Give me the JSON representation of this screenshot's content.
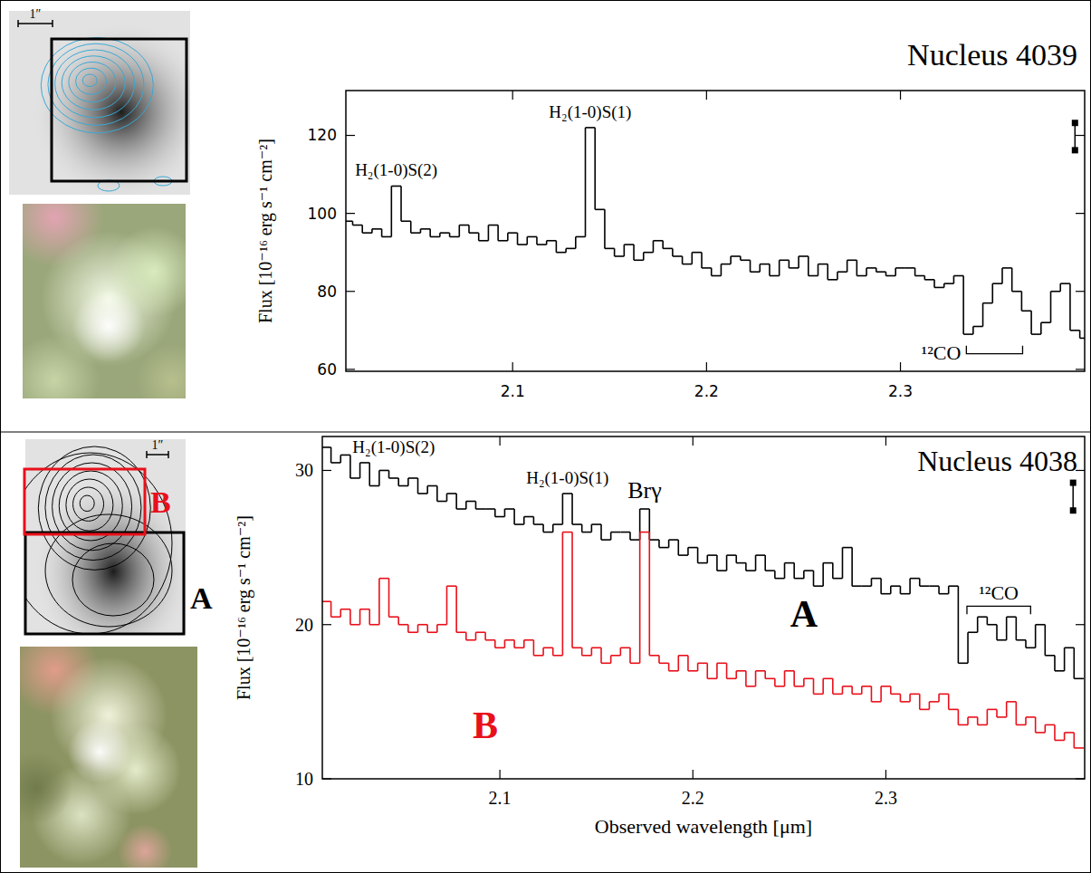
{
  "chart_data": [
    {
      "type": "line",
      "title": "Nucleus 4039",
      "ylabel": "Flux [10⁻¹⁶ erg s⁻¹ cm⁻²]",
      "scale_label": "1″",
      "line_style": "steps",
      "xlim": [
        2.014,
        2.395
      ],
      "xticks": [
        2.1,
        2.2,
        2.3
      ],
      "ylim": [
        59.5,
        131.5
      ],
      "yticks": [
        60,
        80,
        100,
        120
      ],
      "x": [
        2.015,
        2.02,
        2.025,
        2.03,
        2.035,
        2.04,
        2.045,
        2.05,
        2.055,
        2.06,
        2.065,
        2.07,
        2.075,
        2.08,
        2.085,
        2.09,
        2.095,
        2.1,
        2.105,
        2.11,
        2.115,
        2.12,
        2.125,
        2.13,
        2.135,
        2.14,
        2.145,
        2.15,
        2.155,
        2.16,
        2.165,
        2.17,
        2.175,
        2.18,
        2.185,
        2.19,
        2.195,
        2.2,
        2.205,
        2.21,
        2.215,
        2.22,
        2.225,
        2.23,
        2.235,
        2.24,
        2.245,
        2.25,
        2.255,
        2.26,
        2.265,
        2.27,
        2.275,
        2.28,
        2.285,
        2.29,
        2.295,
        2.3,
        2.305,
        2.31,
        2.315,
        2.32,
        2.325,
        2.33,
        2.335,
        2.34,
        2.345,
        2.35,
        2.355,
        2.36,
        2.365,
        2.37,
        2.375,
        2.38,
        2.385,
        2.39,
        2.395
      ],
      "series": [
        {
          "color": "#000000",
          "values": [
            98,
            97,
            95,
            96,
            94,
            107,
            98,
            95,
            96,
            94,
            95,
            94,
            97,
            95,
            93,
            97,
            93,
            95,
            92,
            94,
            92,
            93,
            90,
            91,
            94,
            122,
            101,
            91,
            89,
            92,
            88,
            90,
            93,
            91,
            89,
            87,
            90,
            86,
            84,
            87,
            89,
            88,
            85,
            87,
            84,
            88,
            86,
            89,
            84,
            87,
            83,
            85,
            88,
            84,
            86,
            85,
            84,
            86,
            86,
            84,
            83,
            81,
            82,
            84,
            69,
            71,
            77,
            82,
            86,
            80,
            75,
            69,
            72,
            80,
            82,
            70,
            68
          ]
        }
      ],
      "annotations": [
        {
          "text": "H₂(1-0)S(2)",
          "x": 2.04
        },
        {
          "text": "H₂(1-0)S(1)",
          "x": 2.14
        },
        {
          "text": "¹²CO",
          "x": [
            2.334,
            2.363
          ],
          "y": 64
        }
      ],
      "error_bar": {
        "x": 2.39,
        "y": 119.7,
        "error": 3.5
      }
    },
    {
      "type": "line",
      "title": "Nucleus 4038",
      "ylabel": "Flux [10⁻¹⁶ erg s⁻¹ cm⁻²]",
      "xlabel": "Observed wavelength [μm]",
      "scale_label": "1″",
      "line_style": "steps",
      "xlim": [
        2.008,
        2.403
      ],
      "xticks": [
        2.1,
        2.2,
        2.3
      ],
      "ylim": [
        10,
        32.2
      ],
      "yticks": [
        10,
        20,
        30
      ],
      "x": [
        2.01,
        2.015,
        2.02,
        2.025,
        2.03,
        2.035,
        2.04,
        2.045,
        2.05,
        2.055,
        2.06,
        2.065,
        2.07,
        2.075,
        2.08,
        2.085,
        2.09,
        2.095,
        2.1,
        2.105,
        2.11,
        2.115,
        2.12,
        2.125,
        2.13,
        2.135,
        2.14,
        2.145,
        2.15,
        2.155,
        2.16,
        2.165,
        2.17,
        2.175,
        2.18,
        2.185,
        2.19,
        2.195,
        2.2,
        2.205,
        2.21,
        2.215,
        2.22,
        2.225,
        2.23,
        2.235,
        2.24,
        2.245,
        2.25,
        2.255,
        2.26,
        2.265,
        2.27,
        2.275,
        2.28,
        2.285,
        2.29,
        2.295,
        2.3,
        2.305,
        2.31,
        2.315,
        2.32,
        2.325,
        2.33,
        2.335,
        2.34,
        2.345,
        2.35,
        2.355,
        2.36,
        2.365,
        2.37,
        2.375,
        2.38,
        2.385,
        2.39,
        2.395,
        2.4
      ],
      "series": [
        {
          "name": "A",
          "color": "#000000",
          "values": [
            31.5,
            30.5,
            31,
            29.5,
            30.5,
            29,
            30,
            29.5,
            29,
            29.5,
            28.5,
            29,
            28,
            28.5,
            27.5,
            28,
            27.5,
            27.5,
            27,
            27.5,
            26.5,
            27,
            26.5,
            26,
            26.5,
            28.5,
            26.5,
            26,
            26.5,
            25.5,
            26,
            26,
            25.5,
            27.5,
            25.5,
            25,
            25.5,
            24.5,
            25,
            24,
            24.5,
            23.5,
            24.5,
            24,
            23.5,
            24.5,
            23.5,
            23,
            24,
            23,
            23.5,
            22.5,
            24,
            23,
            25,
            22.5,
            22.5,
            23,
            22,
            22.5,
            22,
            23,
            22.5,
            22.5,
            22,
            22.5,
            17.5,
            19.5,
            20.5,
            20,
            19,
            20.5,
            19,
            18.5,
            20,
            18,
            17,
            18.5,
            16.5
          ]
        },
        {
          "name": "B",
          "color": "#e8101a",
          "values": [
            21.5,
            20.5,
            21,
            20,
            21,
            20,
            23,
            20.5,
            20,
            19.5,
            20,
            19.5,
            20,
            22.5,
            19.5,
            19,
            19.5,
            19,
            18.5,
            19,
            18.5,
            19,
            18,
            18.5,
            18,
            26,
            18.5,
            18,
            18.5,
            17.5,
            18,
            18.5,
            17.5,
            26,
            18,
            17.5,
            17,
            18,
            17,
            17.5,
            16.5,
            17.5,
            16.5,
            17,
            16,
            17,
            16.5,
            16,
            17,
            16,
            16.5,
            15.5,
            16.5,
            15.5,
            16,
            15.5,
            16,
            15,
            16,
            15.5,
            15,
            15.5,
            14.5,
            15,
            15.5,
            14.5,
            13.5,
            14,
            13.5,
            14.5,
            14,
            15,
            13.5,
            14,
            13,
            13.5,
            12.5,
            13,
            12
          ]
        }
      ],
      "annotations": [
        {
          "text": "H₂(1-0)S(2)",
          "x": 2.045
        },
        {
          "text": "H₂(1-0)S(1)",
          "x": 2.135
        },
        {
          "text": "Brγ",
          "x": 2.175
        },
        {
          "text": "¹²CO",
          "x": [
            2.342,
            2.375
          ],
          "y": 21.2
        }
      ],
      "error_bar": {
        "x": 2.397,
        "y": 28.3,
        "error": 0.9
      }
    }
  ]
}
